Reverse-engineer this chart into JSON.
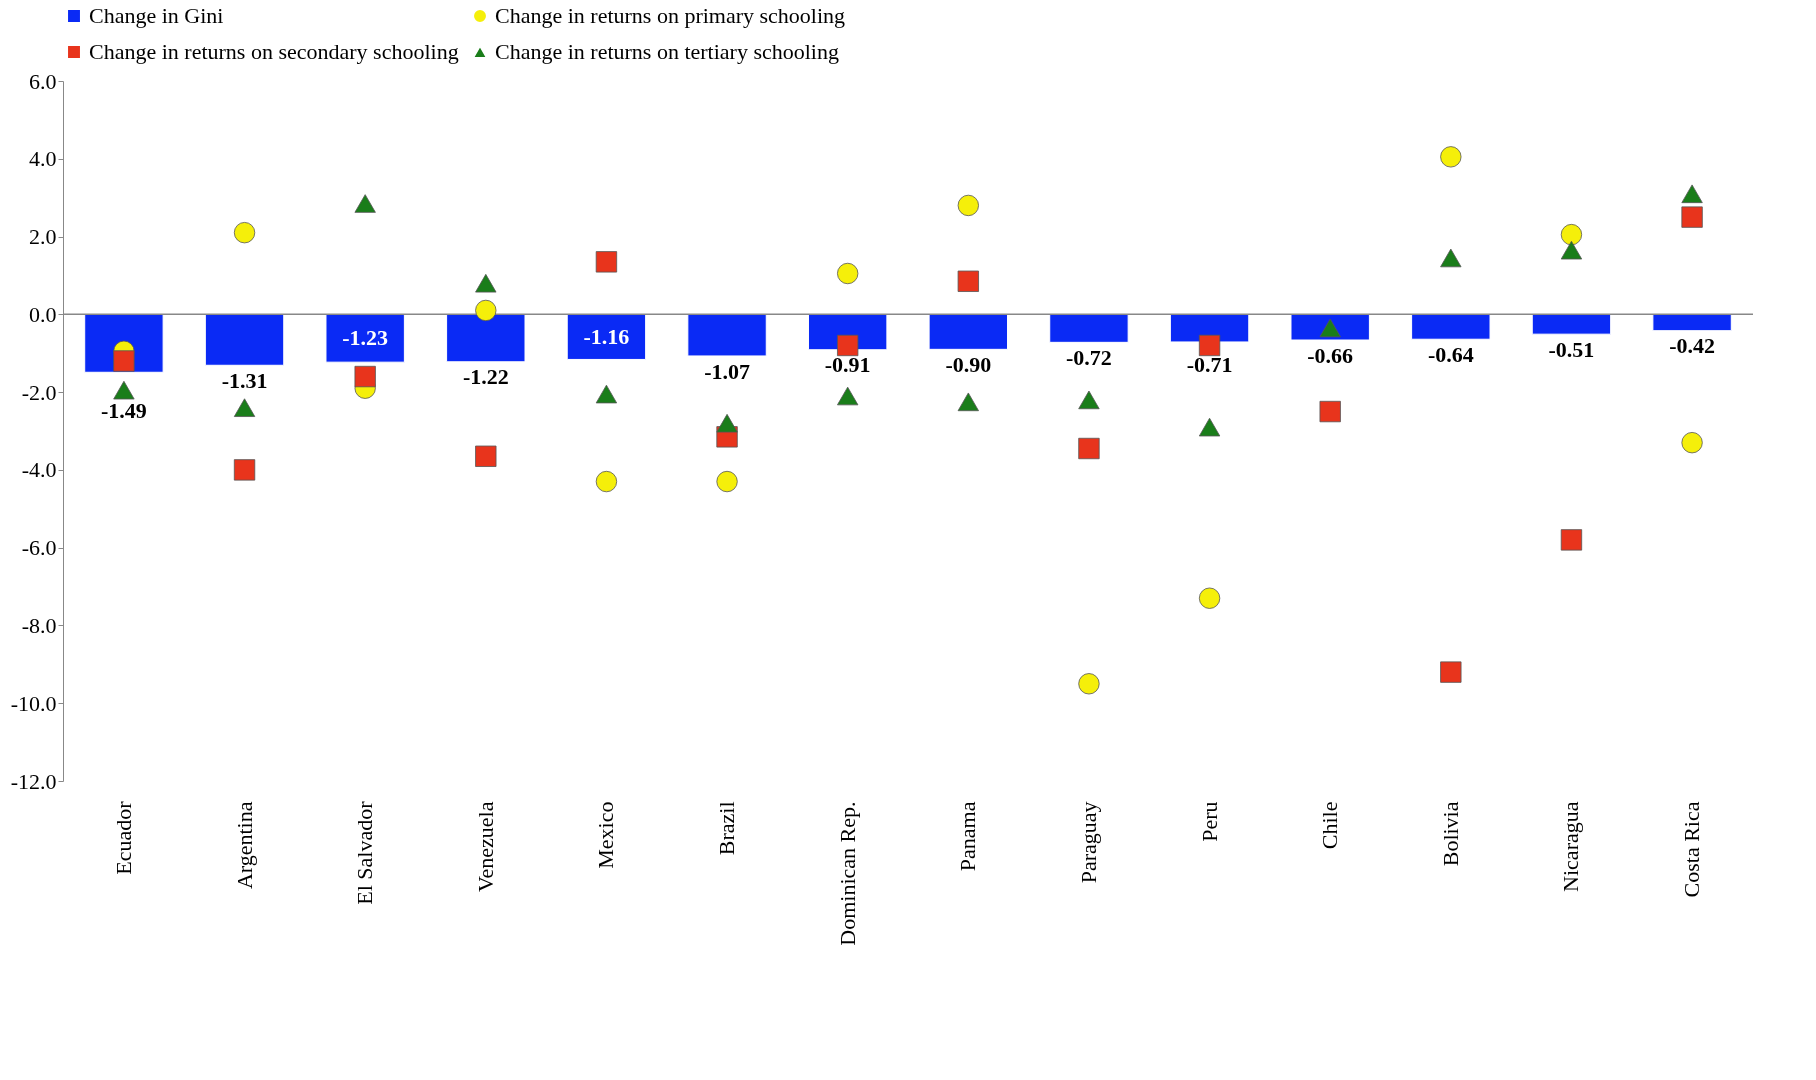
{
  "chart_data": {
    "type": "bar",
    "categories": [
      "Ecuador",
      "Argentina",
      "El Salvador",
      "Venezuela",
      "Mexico",
      "Brazil",
      "Dominican Rep.",
      "Panama",
      "Paraguay",
      "Peru",
      "Chile",
      "Bolivia",
      "Nicaragua",
      "Costa Rica"
    ],
    "series": [
      {
        "name": "Change in Gini",
        "color": "#0a2af5",
        "marker": "square",
        "values": [
          -1.49,
          -1.31,
          -1.23,
          -1.22,
          -1.16,
          -1.07,
          -0.91,
          -0.9,
          -0.72,
          -0.71,
          -0.66,
          -0.64,
          -0.51,
          -0.42
        ],
        "value_labels": [
          "-1.49",
          "-1.31",
          "-1.23",
          "-1.22",
          "-1.16",
          "-1.07",
          "-0.91",
          "-0.90",
          "-0.72",
          "-0.71",
          "-0.66",
          "-0.64",
          "-0.51",
          "-0.42"
        ]
      },
      {
        "name": "Change in returns on primary schooling",
        "type": "scatter",
        "color": "#f5ef0a",
        "marker": "circle",
        "values": [
          -0.95,
          2.1,
          -1.9,
          0.1,
          -4.3,
          -4.3,
          1.05,
          2.8,
          -9.5,
          -7.3,
          null,
          4.05,
          2.05,
          -3.3
        ]
      },
      {
        "name": "Change in returns on secondary schooling",
        "type": "scatter",
        "color": "#e8341c",
        "marker": "square",
        "values": [
          -1.2,
          -4.0,
          -1.6,
          -3.65,
          1.35,
          -3.15,
          -0.8,
          0.85,
          -3.45,
          -0.8,
          -2.5,
          -9.2,
          -5.8,
          2.5
        ]
      },
      {
        "name": "Change in returns on tertiary schooling",
        "type": "scatter",
        "color": "#1a7d1a",
        "marker": "triangle",
        "values": [
          -1.95,
          -2.4,
          2.85,
          0.8,
          -2.05,
          -2.8,
          -2.1,
          -2.25,
          -2.2,
          -2.9,
          -0.35,
          1.45,
          1.65,
          3.1
        ]
      }
    ],
    "ylim": [
      -12,
      6
    ],
    "yticks": [
      {
        "value": -12,
        "label": "-12.0"
      },
      {
        "value": -10,
        "label": "-10.0"
      },
      {
        "value": -8,
        "label": "-8.0"
      },
      {
        "value": -6,
        "label": "-6.0"
      },
      {
        "value": -4,
        "label": "-4.0"
      },
      {
        "value": -2,
        "label": "-2.0"
      },
      {
        "value": 0,
        "label": "0.0"
      },
      {
        "value": 2,
        "label": "2.0"
      },
      {
        "value": 4,
        "label": "4.0"
      },
      {
        "value": 6,
        "label": "6.0"
      }
    ],
    "legend": "top"
  }
}
